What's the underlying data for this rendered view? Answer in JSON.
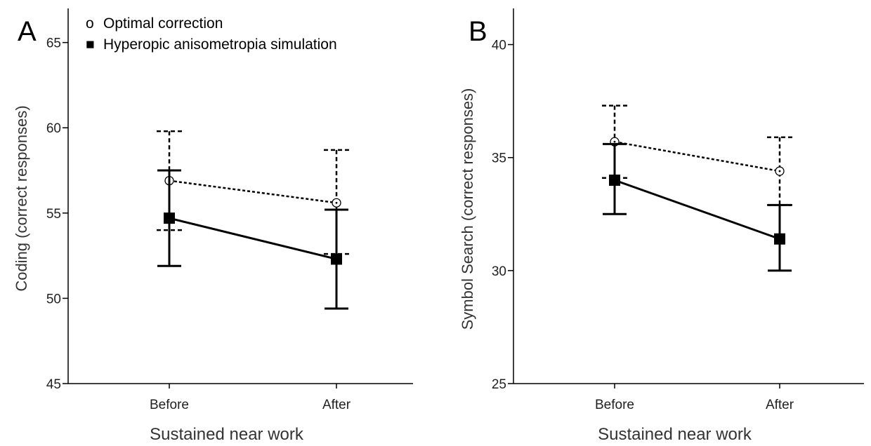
{
  "legend": {
    "optimal": {
      "marker": "o",
      "label": "Optimal correction"
    },
    "hyperopic": {
      "marker": "■",
      "label": "Hyperopic anisometropia simulation"
    }
  },
  "chart_data": [
    {
      "type": "line",
      "panel_label": "A",
      "categories": [
        "Before",
        "After"
      ],
      "xlabel": "Sustained near work",
      "ylabel": "Coding (correct responses)",
      "ylim": [
        45,
        67
      ],
      "yticks": [
        45,
        50,
        55,
        60,
        65
      ],
      "series": [
        {
          "name": "Optimal correction",
          "style": "dashed",
          "marker": "open-circle",
          "values": [
            56.9,
            55.6
          ],
          "error_low": [
            54.0,
            52.6
          ],
          "error_high": [
            59.8,
            58.7
          ]
        },
        {
          "name": "Hyperopic anisometropia simulation",
          "style": "solid",
          "marker": "filled-square",
          "values": [
            54.7,
            52.3
          ],
          "error_low": [
            51.9,
            49.4
          ],
          "error_high": [
            57.5,
            55.2
          ]
        }
      ]
    },
    {
      "type": "line",
      "panel_label": "B",
      "categories": [
        "Before",
        "After"
      ],
      "xlabel": "Sustained near work",
      "ylabel": "Symbol Search (correct responses)",
      "ylim": [
        25,
        41.6
      ],
      "yticks": [
        25,
        30,
        35,
        40
      ],
      "series": [
        {
          "name": "Optimal correction",
          "style": "dashed",
          "marker": "open-circle",
          "values": [
            35.7,
            34.4
          ],
          "error_low": [
            34.1,
            32.9
          ],
          "error_high": [
            37.3,
            35.9
          ]
        },
        {
          "name": "Hyperopic anisometropia simulation",
          "style": "solid",
          "marker": "filled-square",
          "values": [
            34.0,
            31.4
          ],
          "error_low": [
            32.5,
            30.0
          ],
          "error_high": [
            35.6,
            32.9
          ]
        }
      ]
    }
  ]
}
